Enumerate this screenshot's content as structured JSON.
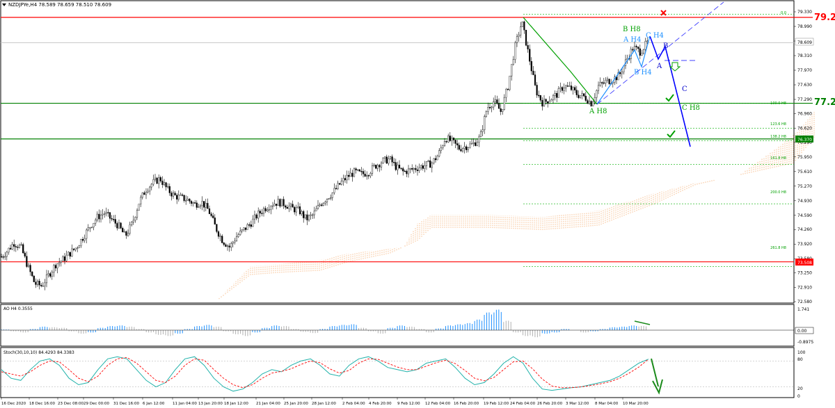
{
  "header": {
    "symbol_text": "NZDJPYe,H4  78.589 78.659 78.510 78.609",
    "menu_icon": "triangle-down-icon"
  },
  "colors": {
    "candle": "#000000",
    "cloud": "#f4a460",
    "red_line": "#ff0000",
    "green_line": "#008000",
    "fib": "#00b000",
    "blue_wave": "#0000ff",
    "light_blue": "#1e90ff",
    "ao_up": "#1e90ff",
    "ao_down": "#b0b0b0",
    "stoch_main": "#20b2aa",
    "stoch_signal": "#ff0000"
  },
  "price_axis": {
    "ticks": [
      "79.330",
      "78.990",
      "78.650",
      "78.310",
      "77.970",
      "77.630",
      "77.290",
      "76.960",
      "76.620",
      "76.290",
      "75.950",
      "75.610",
      "75.270",
      "74.930",
      "74.590",
      "74.260",
      "73.920",
      "73.580",
      "73.250",
      "72.910",
      "72.580"
    ],
    "ylim": [
      72.58,
      79.33
    ],
    "current_price_label": "78.609"
  },
  "levels": {
    "resistance": "79.20",
    "support_mid": "77.20",
    "support_label": "76.370",
    "low_label": "73.508"
  },
  "fib": {
    "top_label": "0.0",
    "labels": [
      "100.0 H8",
      "123.6 H8",
      "138.2 H8",
      "161.8 H8",
      "200.0 H8",
      "261.8 H8"
    ]
  },
  "wave_labels": {
    "b_h8": "B H8",
    "a_h4": "A H4",
    "c_h4": "C H4",
    "b_h4": "B H4",
    "a_h8": "A H8",
    "c_h8": "C H8",
    "b": "B",
    "a": "A",
    "c": "C"
  },
  "time_axis": {
    "labels": [
      "16 Dec 2020",
      "18 Dec 16:00",
      "23 Dec 08:00",
      "29 Dec 00:00",
      "31 Dec 16:00",
      "6 Jan 12:00",
      "11 Jan 04:00",
      "13 Jan 20:00",
      "18 Jan 12:00",
      "21 Jan 04:00",
      "25 Jan 20:00",
      "28 Jan 12:00",
      "2 Feb 04:00",
      "4 Feb 20:00",
      "9 Feb 12:00",
      "12 Feb 04:00",
      "16 Feb 20:00",
      "19 Feb 12:00",
      "24 Feb 04:00",
      "26 Feb 20:00",
      "3 Mar 12:00",
      "8 Mar 04:00",
      "10 Mar 20:00"
    ]
  },
  "ao_panel": {
    "title": "AO H4  0.3555",
    "ticks": [
      "1.741",
      "0.00",
      "-0.8975"
    ]
  },
  "stoch_panel": {
    "title": "Stoch(30,10,10) 84.4293 84.3383",
    "ticks": [
      "100",
      "80",
      "20",
      "0"
    ]
  },
  "chart_data": {
    "type": "candlestick",
    "title": "NZDJPYe,H4",
    "ohlc_last": {
      "open": 78.589,
      "high": 78.659,
      "low": 78.51,
      "close": 78.609
    },
    "ylim": [
      72.58,
      79.33
    ],
    "close_path": [
      [
        0,
        73.6
      ],
      [
        10,
        73.75
      ],
      [
        20,
        73.95
      ],
      [
        30,
        73.85
      ],
      [
        40,
        73.4
      ],
      [
        50,
        73.0
      ],
      [
        60,
        72.95
      ],
      [
        70,
        73.2
      ],
      [
        80,
        73.45
      ],
      [
        90,
        73.55
      ],
      [
        100,
        73.7
      ],
      [
        110,
        73.85
      ],
      [
        120,
        74.1
      ],
      [
        130,
        74.35
      ],
      [
        140,
        74.55
      ],
      [
        150,
        74.65
      ],
      [
        160,
        74.5
      ],
      [
        170,
        74.35
      ],
      [
        180,
        74.1
      ],
      [
        190,
        74.4
      ],
      [
        200,
        74.9
      ],
      [
        210,
        75.2
      ],
      [
        220,
        75.35
      ],
      [
        230,
        75.45
      ],
      [
        240,
        75.2
      ],
      [
        250,
        75.05
      ],
      [
        260,
        75.0
      ],
      [
        270,
        74.95
      ],
      [
        280,
        74.85
      ],
      [
        290,
        74.9
      ],
      [
        300,
        74.7
      ],
      [
        310,
        74.3
      ],
      [
        320,
        74.0
      ],
      [
        330,
        73.85
      ],
      [
        340,
        74.1
      ],
      [
        350,
        74.25
      ],
      [
        360,
        74.4
      ],
      [
        370,
        74.6
      ],
      [
        380,
        74.75
      ],
      [
        390,
        74.85
      ],
      [
        400,
        74.9
      ],
      [
        410,
        74.85
      ],
      [
        420,
        74.75
      ],
      [
        430,
        74.7
      ],
      [
        440,
        74.5
      ],
      [
        450,
        74.6
      ],
      [
        460,
        74.85
      ],
      [
        470,
        75.0
      ],
      [
        480,
        75.15
      ],
      [
        490,
        75.35
      ],
      [
        500,
        75.5
      ],
      [
        510,
        75.6
      ],
      [
        520,
        75.55
      ],
      [
        530,
        75.6
      ],
      [
        540,
        75.75
      ],
      [
        550,
        75.85
      ],
      [
        560,
        75.9
      ],
      [
        570,
        75.7
      ],
      [
        580,
        75.6
      ],
      [
        590,
        75.65
      ],
      [
        600,
        75.7
      ],
      [
        610,
        75.75
      ],
      [
        620,
        75.8
      ],
      [
        630,
        76.0
      ],
      [
        640,
        76.4
      ],
      [
        650,
        76.3
      ],
      [
        660,
        76.15
      ],
      [
        670,
        76.2
      ],
      [
        680,
        76.25
      ],
      [
        690,
        76.4
      ],
      [
        700,
        77.1
      ],
      [
        710,
        77.25
      ],
      [
        720,
        77.0
      ],
      [
        730,
        77.6
      ],
      [
        740,
        78.5
      ],
      [
        750,
        79.1
      ],
      [
        760,
        78.3
      ],
      [
        770,
        77.5
      ],
      [
        780,
        77.2
      ],
      [
        790,
        77.3
      ],
      [
        800,
        77.4
      ],
      [
        810,
        77.6
      ],
      [
        820,
        77.55
      ],
      [
        830,
        77.4
      ],
      [
        840,
        77.35
      ],
      [
        850,
        77.2
      ],
      [
        860,
        77.6
      ],
      [
        870,
        77.7
      ],
      [
        880,
        77.75
      ],
      [
        890,
        77.85
      ],
      [
        900,
        78.2
      ],
      [
        910,
        78.5
      ],
      [
        920,
        78.4
      ],
      [
        930,
        78.61
      ]
    ],
    "horizontal_levels": [
      79.2,
      78.609,
      77.2,
      76.37,
      73.508
    ],
    "cloud_bottom": [
      [
        310,
        72.58
      ],
      [
        360,
        73.2
      ],
      [
        400,
        73.25
      ],
      [
        460,
        73.3
      ],
      [
        500,
        73.5
      ],
      [
        560,
        73.7
      ],
      [
        600,
        74.0
      ],
      [
        620,
        74.3
      ],
      [
        700,
        74.3
      ],
      [
        780,
        74.25
      ],
      [
        860,
        74.35
      ],
      [
        940,
        74.85
      ],
      [
        1000,
        75.3
      ],
      [
        1140,
        75.8
      ],
      [
        1170,
        76.4
      ]
    ],
    "cloud_top": [
      [
        310,
        72.58
      ],
      [
        360,
        73.4
      ],
      [
        400,
        73.45
      ],
      [
        460,
        73.55
      ],
      [
        500,
        73.7
      ],
      [
        580,
        73.85
      ],
      [
        600,
        74.4
      ],
      [
        620,
        74.6
      ],
      [
        700,
        74.6
      ],
      [
        780,
        74.55
      ],
      [
        860,
        74.7
      ],
      [
        940,
        75.1
      ],
      [
        1000,
        75.35
      ],
      [
        1060,
        75.5
      ],
      [
        1120,
        76.2
      ],
      [
        1150,
        76.6
      ],
      [
        1170,
        77.0
      ]
    ],
    "ao_values": [
      0.05,
      -0.1,
      -0.2,
      0.1,
      0.3,
      0.25,
      0.2,
      -0.1,
      -0.3,
      -0.2,
      0.2,
      0.35,
      0.4,
      0.3,
      0.1,
      -0.2,
      -0.4,
      -0.5,
      -0.3,
      0.1,
      0.35,
      0.45,
      0.3,
      -0.1,
      -0.35,
      -0.5,
      -0.2,
      0.2,
      0.4,
      0.35,
      0.1,
      -0.15,
      -0.25,
      0.1,
      0.35,
      0.45,
      0.5,
      0.2,
      -0.1,
      -0.3,
      0.2,
      0.4,
      0.3,
      0.1,
      -0.2,
      0.15,
      0.4,
      0.5,
      0.6,
      0.9,
      1.5,
      1.74,
      0.8,
      -0.2,
      -0.5,
      -0.6,
      -0.3,
      -0.2,
      0.1,
      0.0,
      -0.2,
      -0.1,
      0.1,
      0.25,
      0.3,
      0.4,
      0.36
    ],
    "stoch_main": [
      60,
      40,
      35,
      60,
      80,
      85,
      70,
      40,
      25,
      30,
      60,
      85,
      90,
      85,
      60,
      35,
      20,
      30,
      60,
      85,
      90,
      70,
      40,
      20,
      10,
      15,
      30,
      50,
      60,
      55,
      70,
      80,
      85,
      70,
      50,
      45,
      70,
      85,
      90,
      80,
      65,
      60,
      55,
      60,
      75,
      80,
      85,
      65,
      40,
      25,
      30,
      50,
      75,
      90,
      75,
      40,
      15,
      12,
      15,
      18,
      20,
      25,
      30,
      35,
      45,
      60,
      75,
      84.4
    ],
    "stoch_signal": [
      55,
      50,
      45,
      55,
      70,
      80,
      78,
      60,
      40,
      32,
      45,
      70,
      85,
      88,
      75,
      55,
      35,
      30,
      45,
      70,
      85,
      82,
      60,
      40,
      25,
      18,
      25,
      40,
      52,
      56,
      62,
      72,
      80,
      76,
      62,
      52,
      58,
      75,
      85,
      84,
      75,
      66,
      60,
      60,
      68,
      76,
      82,
      74,
      58,
      40,
      34,
      42,
      60,
      78,
      80,
      62,
      38,
      22,
      18,
      18,
      20,
      23,
      27,
      32,
      40,
      52,
      66,
      84.3
    ]
  }
}
